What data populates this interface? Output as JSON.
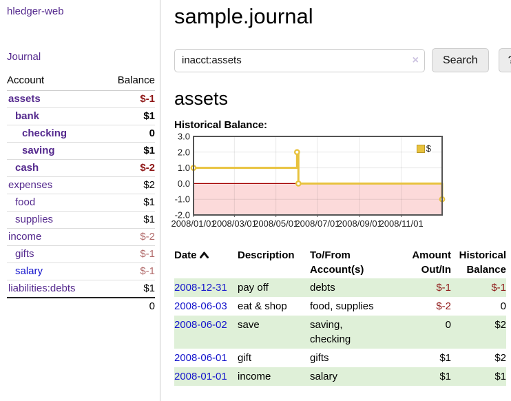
{
  "sidebar": {
    "app_title": "hledger-web",
    "journal_link": "Journal",
    "header": {
      "account": "Account",
      "balance": "Balance"
    },
    "accounts": [
      {
        "name": "assets",
        "balance": "$-1"
      },
      {
        "name": "bank",
        "balance": "$1"
      },
      {
        "name": "checking",
        "balance": "0"
      },
      {
        "name": "saving",
        "balance": "$1"
      },
      {
        "name": "cash",
        "balance": "$-2"
      },
      {
        "name": "expenses",
        "balance": "$2"
      },
      {
        "name": "food",
        "balance": "$1"
      },
      {
        "name": "supplies",
        "balance": "$1"
      },
      {
        "name": "income",
        "balance": "$-2"
      },
      {
        "name": "gifts",
        "balance": "$-1"
      },
      {
        "name": "salary",
        "balance": "$-1"
      },
      {
        "name": "liabilities:debts",
        "balance": "$1"
      }
    ],
    "total": "0"
  },
  "main": {
    "title": "sample.journal",
    "account_heading": "assets",
    "chart_title": "Historical Balance:"
  },
  "search": {
    "query": "inacct:assets",
    "clear_icon": "×",
    "search_label": "Search",
    "help_label": "?"
  },
  "register": {
    "headers": {
      "date": "Date",
      "description": "Description",
      "accounts": "To/From Account(s)",
      "amount": "Amount Out/In",
      "balance": "Historical Balance"
    },
    "rows": [
      {
        "date": "2008-12-31",
        "description": "pay off",
        "accounts": "debts",
        "amount": "$-1",
        "balance": "$-1"
      },
      {
        "date": "2008-06-03",
        "description": "eat & shop",
        "accounts": "food, supplies",
        "amount": "$-2",
        "balance": "0"
      },
      {
        "date": "2008-06-02",
        "description": "save",
        "accounts": "saving, checking",
        "amount": "0",
        "balance": "$2"
      },
      {
        "date": "2008-06-01",
        "description": "gift",
        "accounts": "gifts",
        "amount": "$1",
        "balance": "$2"
      },
      {
        "date": "2008-01-01",
        "description": "income",
        "accounts": "salary",
        "amount": "$1",
        "balance": "$1"
      }
    ]
  },
  "chart_data": {
    "type": "line",
    "title": "Historical Balance:",
    "legend": "$",
    "x_start": "2008-01-01",
    "x_end": "2008-12-31",
    "x_ticks": [
      "2008/01/01",
      "2008/03/01",
      "2008/05/01",
      "2008/07/01",
      "2008/09/01",
      "2008/11/01"
    ],
    "y_ticks": [
      "3.0",
      "2.0",
      "1.0",
      "0.0",
      "-1.0",
      "-2.0"
    ],
    "ylim": [
      -2,
      3
    ],
    "points": [
      {
        "date": "2008-01-01",
        "value": 1
      },
      {
        "date": "2008-06-01",
        "value": 2
      },
      {
        "date": "2008-06-03",
        "value": 0
      },
      {
        "date": "2008-12-31",
        "value": -1
      }
    ],
    "series_color": "#e8c23d",
    "marker_fill": "#ffffff",
    "negative_region_color": "#fcdada",
    "zero_line_color": "#a40000",
    "grid_color": "rgba(0,0,0,0.09)",
    "border_color": "#545454"
  }
}
